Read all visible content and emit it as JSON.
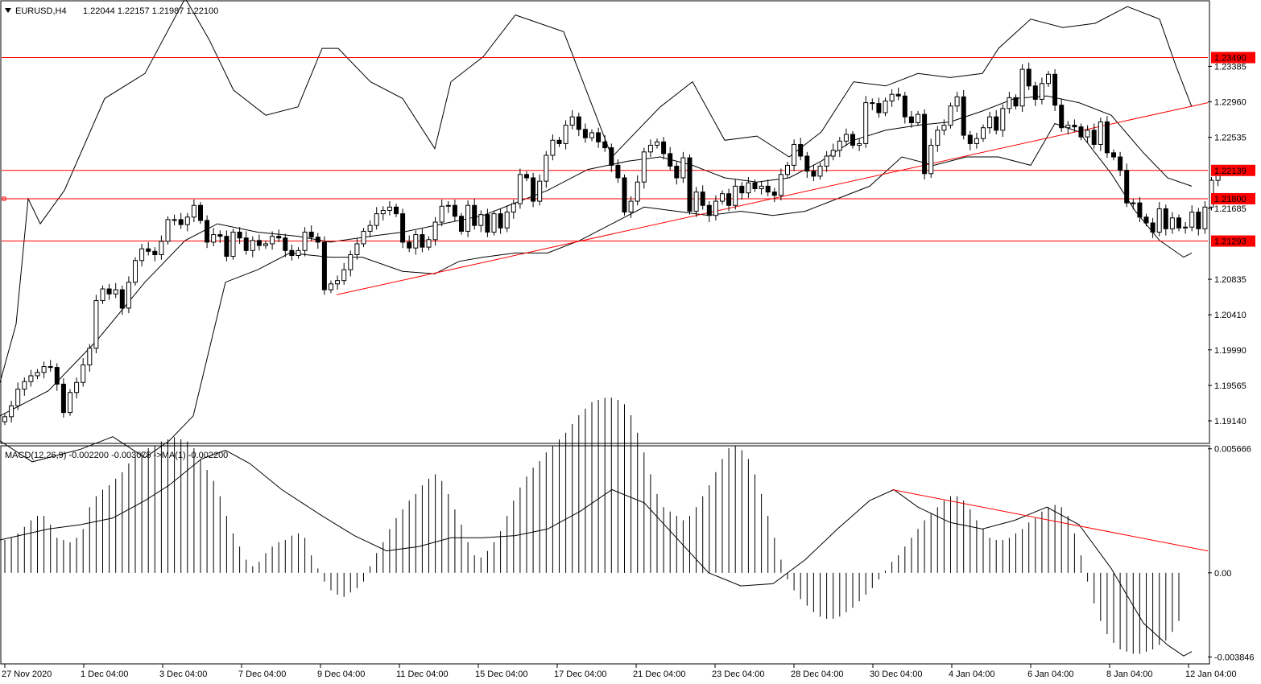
{
  "header": {
    "symbol": "EURUSD,H4",
    "ohlc": "1.22044 1.22157 1.21987 1.22100"
  },
  "macd_header": "MACD(12,26,9) -0.002200 -0.003075 ->MA(1) -0.002200",
  "colors": {
    "background": "#ffffff",
    "axis": "#000000",
    "level_line": "#ff0000",
    "trend_line": "#ff0000",
    "candle_bull": "#ffffff",
    "candle_bear": "#000000",
    "band": "#000000",
    "macd_hist": "#000000",
    "macd_signal": "#000000"
  },
  "chart_data": [
    {
      "type": "candlestick",
      "symbol": "EURUSD",
      "timeframe": "H4",
      "ylim": [
        1.1888,
        1.2416
      ],
      "y_ticks": [
        "1.23385",
        "1.22960",
        "1.22535",
        "1.21685",
        "1.20835",
        "1.20410",
        "1.19990",
        "1.19565",
        "1.19140"
      ],
      "x_ticks": [
        "27 Nov 2020",
        "1 Dec 04:00",
        "3 Dec 04:00",
        "7 Dec 04:00",
        "9 Dec 04:00",
        "11 Dec 04:00",
        "15 Dec 04:00",
        "17 Dec 04:00",
        "21 Dec 04:00",
        "23 Dec 04:00",
        "28 Dec 04:00",
        "30 Dec 04:00",
        "4 Jan 04:00",
        "6 Jan 04:00",
        "8 Jan 04:00",
        "12 Jan 04:00"
      ],
      "levels": [
        {
          "label": "1.23490",
          "value": 1.2349
        },
        {
          "label": "1.22139",
          "value": 1.22139
        },
        {
          "label": "1.21800",
          "value": 1.218
        },
        {
          "label": "1.21293",
          "value": 1.21293
        }
      ],
      "trendline": [
        [
          1.2065
        ],
        [
          1.2295
        ]
      ],
      "closes": [
        1.1919,
        1.1932,
        1.1952,
        1.1961,
        1.1968,
        1.1972,
        1.1979,
        1.1978,
        1.1958,
        1.1924,
        1.1948,
        1.196,
        1.1981,
        1.2001,
        1.2058,
        1.2072,
        1.2066,
        1.2071,
        1.2049,
        1.208,
        1.2106,
        1.212,
        1.2117,
        1.2113,
        1.2129,
        1.2155,
        1.2155,
        1.2149,
        1.2158,
        1.2172,
        1.2154,
        1.2128,
        1.2137,
        1.2135,
        1.2111,
        1.214,
        1.2133,
        1.2118,
        1.213,
        1.2124,
        1.2126,
        1.2135,
        1.2133,
        1.2118,
        1.2112,
        1.2118,
        1.214,
        1.2134,
        1.2128,
        1.2071,
        1.2078,
        1.2082,
        1.2095,
        1.2113,
        1.2126,
        1.2141,
        1.2148,
        1.2162,
        1.2166,
        1.217,
        1.2162,
        1.2128,
        1.2121,
        1.2137,
        1.2122,
        1.2131,
        1.2152,
        1.2171,
        1.2172,
        1.2159,
        1.2141,
        1.2172,
        1.2148,
        1.2161,
        1.214,
        1.2162,
        1.2145,
        1.2164,
        1.2174,
        1.2209,
        1.2205,
        1.2177,
        1.2201,
        1.2232,
        1.225,
        1.2246,
        1.2268,
        1.2278,
        1.2263,
        1.2253,
        1.2259,
        1.2248,
        1.2241,
        1.222,
        1.2205,
        1.2164,
        1.2177,
        1.22,
        1.2236,
        1.2244,
        1.2248,
        1.2234,
        1.2219,
        1.2205,
        1.2229,
        1.2165,
        1.2188,
        1.2172,
        1.216,
        1.2177,
        1.2186,
        1.2172,
        1.2195,
        1.2187,
        1.2199,
        1.2192,
        1.2195,
        1.2188,
        1.2184,
        1.2209,
        1.222,
        1.2245,
        1.2231,
        1.2213,
        1.2207,
        1.2219,
        1.2231,
        1.2238,
        1.2249,
        1.2257,
        1.2244,
        1.2246,
        1.2295,
        1.2294,
        1.2283,
        1.2297,
        1.2305,
        1.2303,
        1.2278,
        1.2271,
        1.2281,
        1.221,
        1.2244,
        1.2262,
        1.2268,
        1.2291,
        1.2302,
        1.2256,
        1.2246,
        1.2252,
        1.2265,
        1.2278,
        1.2262,
        1.2288,
        1.2301,
        1.2291,
        1.2335,
        1.2315,
        1.2299,
        1.2318,
        1.2329,
        1.2292,
        1.2265,
        1.2268,
        1.2266,
        1.2254,
        1.2262,
        1.2245,
        1.2272,
        1.2235,
        1.223,
        1.2214,
        1.2175,
        1.2175,
        1.2158,
        1.2151,
        1.214,
        1.2168,
        1.2144,
        1.2157,
        1.2145,
        1.2146,
        1.2164,
        1.2144,
        1.217,
        1.2202,
        1.221
      ],
      "bollinger": {
        "upper": [
          [
            0,
            1.196
          ],
          [
            20,
            1.203
          ],
          [
            35,
            1.218
          ],
          [
            50,
            1.215
          ],
          [
            80,
            1.219
          ],
          [
            130,
            1.23
          ],
          [
            180,
            1.233
          ],
          [
            230,
            1.242
          ],
          [
            260,
            1.237
          ],
          [
            290,
            1.231
          ],
          [
            330,
            1.228
          ],
          [
            370,
            1.229
          ],
          [
            400,
            1.236
          ],
          [
            420,
            1.236
          ],
          [
            460,
            1.232
          ],
          [
            500,
            1.23
          ],
          [
            540,
            1.224
          ],
          [
            560,
            1.232
          ],
          [
            600,
            1.235
          ],
          [
            640,
            1.24
          ],
          [
            700,
            1.238
          ],
          [
            760,
            1.223
          ],
          [
            820,
            1.229
          ],
          [
            860,
            1.232
          ],
          [
            900,
            1.225
          ],
          [
            940,
            1.2255
          ],
          [
            980,
            1.223
          ],
          [
            1020,
            1.226
          ],
          [
            1060,
            1.232
          ],
          [
            1100,
            1.2315
          ],
          [
            1140,
            1.233
          ],
          [
            1180,
            1.2325
          ],
          [
            1220,
            1.233
          ],
          [
            1240,
            1.236
          ],
          [
            1280,
            1.2395
          ],
          [
            1320,
            1.2385
          ],
          [
            1360,
            1.239
          ],
          [
            1400,
            1.241
          ],
          [
            1440,
            1.2395
          ],
          [
            1460,
            1.234
          ],
          [
            1480,
            1.229
          ]
        ],
        "lower": [
          [
            0,
            1.189
          ],
          [
            40,
            1.1865
          ],
          [
            100,
            1.188
          ],
          [
            140,
            1.1895
          ],
          [
            180,
            1.187
          ],
          [
            210,
            1.189
          ],
          [
            240,
            1.192
          ],
          [
            260,
            1.2
          ],
          [
            280,
            1.208
          ],
          [
            320,
            1.2095
          ],
          [
            360,
            1.2115
          ],
          [
            410,
            1.211
          ],
          [
            450,
            1.211
          ],
          [
            500,
            1.2093
          ],
          [
            540,
            1.209
          ],
          [
            570,
            1.2105
          ],
          [
            600,
            1.211
          ],
          [
            640,
            1.2115
          ],
          [
            680,
            1.2115
          ],
          [
            720,
            1.213
          ],
          [
            760,
            1.215
          ],
          [
            800,
            1.217
          ],
          [
            840,
            1.2165
          ],
          [
            880,
            1.216
          ],
          [
            920,
            1.2165
          ],
          [
            960,
            1.216
          ],
          [
            1000,
            1.2165
          ],
          [
            1040,
            1.218
          ],
          [
            1080,
            1.2195
          ],
          [
            1120,
            1.223
          ],
          [
            1160,
            1.222
          ],
          [
            1200,
            1.223
          ],
          [
            1240,
            1.223
          ],
          [
            1280,
            1.222
          ],
          [
            1310,
            1.227
          ],
          [
            1340,
            1.226
          ],
          [
            1380,
            1.221
          ],
          [
            1410,
            1.2165
          ],
          [
            1440,
            1.213
          ],
          [
            1470,
            1.211
          ],
          [
            1480,
            1.2115
          ]
        ],
        "middle": [
          [
            0,
            1.192
          ],
          [
            60,
            1.195
          ],
          [
            120,
            1.201
          ],
          [
            180,
            1.208
          ],
          [
            230,
            1.213
          ],
          [
            270,
            1.215
          ],
          [
            320,
            1.214
          ],
          [
            370,
            1.2135
          ],
          [
            410,
            1.2128
          ],
          [
            460,
            1.2135
          ],
          [
            500,
            1.214
          ],
          [
            550,
            1.215
          ],
          [
            600,
            1.216
          ],
          [
            640,
            1.2175
          ],
          [
            680,
            1.219
          ],
          [
            730,
            1.2215
          ],
          [
            780,
            1.2225
          ],
          [
            820,
            1.223
          ],
          [
            860,
            1.222
          ],
          [
            900,
            1.2205
          ],
          [
            940,
            1.22
          ],
          [
            980,
            1.2205
          ],
          [
            1020,
            1.2225
          ],
          [
            1060,
            1.225
          ],
          [
            1100,
            1.2262
          ],
          [
            1140,
            1.2268
          ],
          [
            1180,
            1.2272
          ],
          [
            1220,
            1.2285
          ],
          [
            1260,
            1.23
          ],
          [
            1300,
            1.2303
          ],
          [
            1340,
            1.2295
          ],
          [
            1380,
            1.228
          ],
          [
            1420,
            1.2235
          ],
          [
            1450,
            1.2205
          ],
          [
            1480,
            1.2195
          ]
        ]
      }
    },
    {
      "type": "bar",
      "name": "MACD(12,26,9)",
      "ylim": [
        -0.004125,
        0.00573
      ],
      "y_ticks": [
        "0.005666",
        "0.00",
        "-0.003846"
      ],
      "histogram": [
        0.0015,
        0.0016,
        0.0018,
        0.0021,
        0.0024,
        0.0026,
        0.0026,
        0.0022,
        0.0016,
        0.0015,
        0.0014,
        0.0016,
        0.002,
        0.003,
        0.0035,
        0.0038,
        0.004,
        0.0043,
        0.0046,
        0.005,
        0.0053,
        0.0055,
        0.0057,
        0.0058,
        0.006,
        0.0061,
        0.0062,
        0.0061,
        0.006,
        0.0057,
        0.0052,
        0.0047,
        0.0042,
        0.0035,
        0.0026,
        0.0018,
        0.0012,
        0.0006,
        0.0003,
        0.0005,
        0.0009,
        0.0012,
        0.0014,
        0.0015,
        0.0017,
        0.0018,
        0.0016,
        0.0008,
        0.0002,
        -0.0004,
        -0.0008,
        -0.001,
        -0.0011,
        -0.0009,
        -0.0007,
        -0.0004,
        0.0003,
        0.0009,
        0.0014,
        0.002,
        0.0025,
        0.0029,
        0.0033,
        0.0036,
        0.004,
        0.0043,
        0.0045,
        0.0042,
        0.0036,
        0.0029,
        0.0022,
        0.0014,
        0.0008,
        0.0007,
        0.001,
        0.0014,
        0.0019,
        0.0026,
        0.0033,
        0.0039,
        0.0044,
        0.0048,
        0.0051,
        0.0055,
        0.0058,
        0.0061,
        0.0064,
        0.0068,
        0.0072,
        0.0075,
        0.0078,
        0.0079,
        0.008,
        0.008,
        0.0079,
        0.0077,
        0.0072,
        0.0064,
        0.0055,
        0.0045,
        0.0036,
        0.003,
        0.0028,
        0.0026,
        0.0024,
        0.0026,
        0.003,
        0.0035,
        0.004,
        0.0046,
        0.0052,
        0.0057,
        0.0058,
        0.0056,
        0.0052,
        0.0045,
        0.0036,
        0.0026,
        0.0016,
        0.0006,
        -0.0003,
        -0.0008,
        -0.0012,
        -0.0015,
        -0.0018,
        -0.002,
        -0.0021,
        -0.0021,
        -0.002,
        -0.0018,
        -0.0016,
        -0.0013,
        -0.001,
        -0.0007,
        -0.0003,
        0.0001,
        0.0005,
        0.0008,
        0.0012,
        0.0016,
        0.002,
        0.0024,
        0.0027,
        0.003,
        0.0033,
        0.0035,
        0.0035,
        0.0033,
        0.0029,
        0.0024,
        0.002,
        0.0016,
        0.0015,
        0.0015,
        0.0016,
        0.0018,
        0.002,
        0.0023,
        0.0025,
        0.0028,
        0.003,
        0.0031,
        0.003,
        0.0026,
        0.0018,
        0.0008,
        -0.0004,
        -0.0014,
        -0.0022,
        -0.0028,
        -0.0032,
        -0.0035,
        -0.0036,
        -0.0037,
        -0.0037,
        -0.0036,
        -0.0035,
        -0.0033,
        -0.0031,
        -0.0027,
        -0.0022
      ],
      "signal": [
        [
          0,
          0.0015
        ],
        [
          60,
          0.002
        ],
        [
          100,
          0.0022
        ],
        [
          140,
          0.0025
        ],
        [
          180,
          0.0033
        ],
        [
          210,
          0.004
        ],
        [
          250,
          0.0052
        ],
        [
          280,
          0.0056
        ],
        [
          310,
          0.005
        ],
        [
          350,
          0.0038
        ],
        [
          400,
          0.0026
        ],
        [
          440,
          0.0017
        ],
        [
          480,
          0.001
        ],
        [
          520,
          0.0012
        ],
        [
          560,
          0.0016
        ],
        [
          600,
          0.0016
        ],
        [
          640,
          0.0017
        ],
        [
          680,
          0.002
        ],
        [
          720,
          0.0028
        ],
        [
          760,
          0.0038
        ],
        [
          800,
          0.0032
        ],
        [
          840,
          0.0016
        ],
        [
          880,
          0.0
        ],
        [
          920,
          -0.0006
        ],
        [
          960,
          -0.0005
        ],
        [
          1000,
          0.0006
        ],
        [
          1040,
          0.002
        ],
        [
          1080,
          0.0033
        ],
        [
          1110,
          0.0038
        ],
        [
          1140,
          0.003
        ],
        [
          1180,
          0.0023
        ],
        [
          1220,
          0.002
        ],
        [
          1260,
          0.0024
        ],
        [
          1300,
          0.003
        ],
        [
          1340,
          0.0022
        ],
        [
          1380,
          0.0002
        ],
        [
          1420,
          -0.0023
        ],
        [
          1450,
          -0.0033
        ],
        [
          1470,
          -0.0038
        ],
        [
          1480,
          -0.0036
        ]
      ],
      "trendline": [
        [
          0.0038
        ],
        [
          0.001
        ]
      ]
    }
  ]
}
